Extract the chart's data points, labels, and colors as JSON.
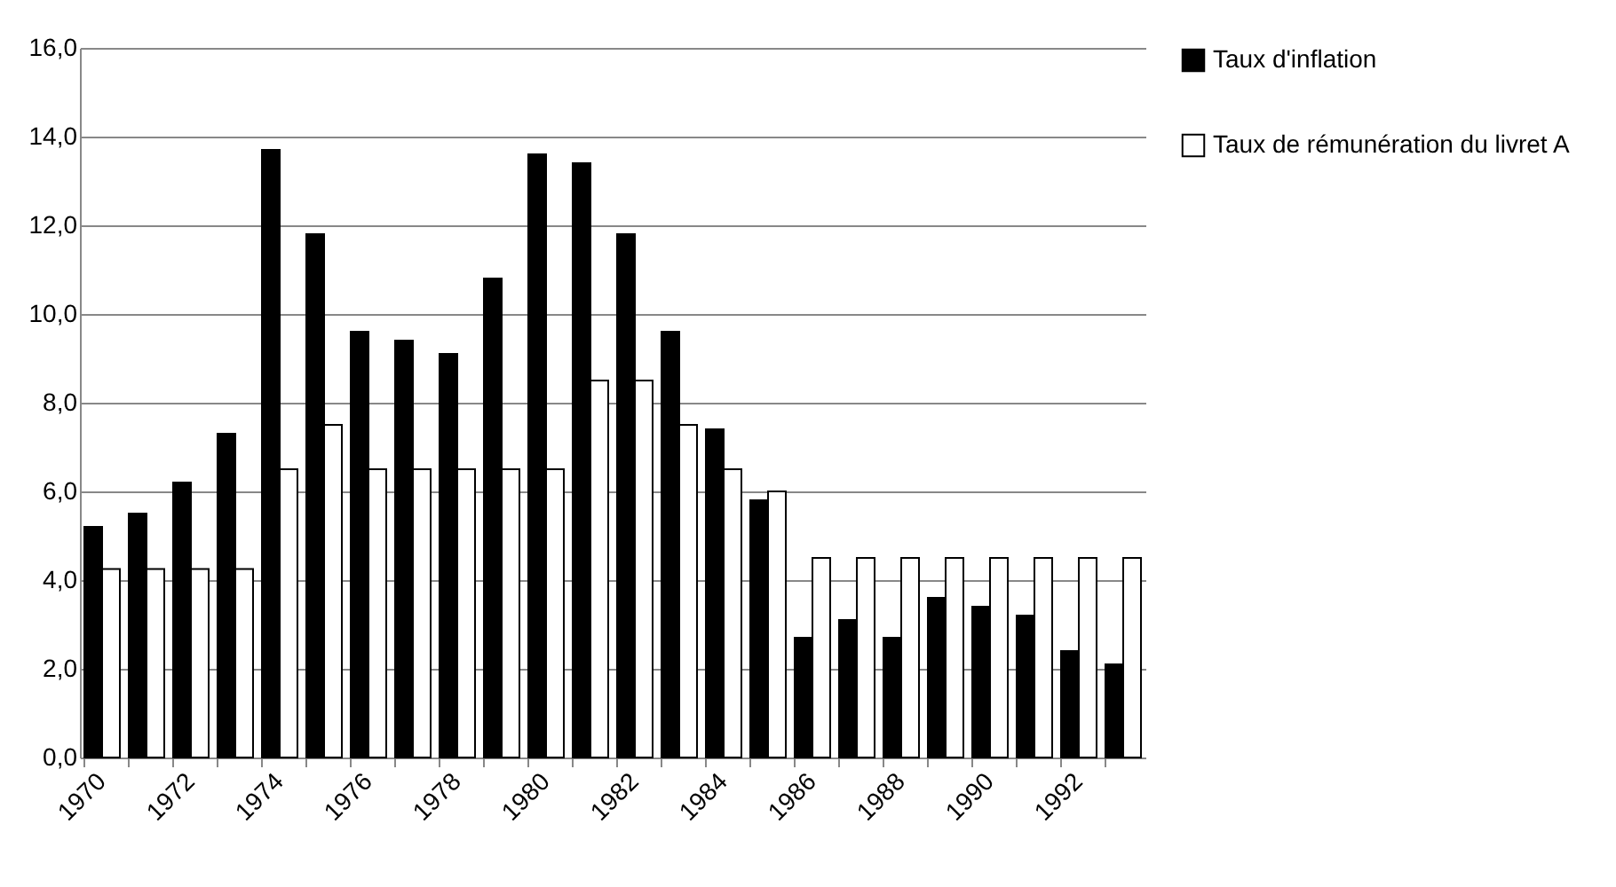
{
  "chart_data": {
    "type": "bar",
    "categories": [
      "1970",
      null,
      "1972",
      null,
      "1974",
      null,
      "1976",
      null,
      "1978",
      null,
      "1980",
      null,
      "1982",
      null,
      "1984",
      null,
      "1986",
      null,
      "1988",
      null,
      "1990",
      null,
      "1992",
      null
    ],
    "series": [
      {
        "name": "Taux d'inflation",
        "color": "#000000",
        "values": [
          5.2,
          5.5,
          6.2,
          7.3,
          13.7,
          11.8,
          9.6,
          9.4,
          9.1,
          10.8,
          13.6,
          13.4,
          11.8,
          9.6,
          7.4,
          5.8,
          2.7,
          3.1,
          2.7,
          3.6,
          3.4,
          3.2,
          2.4,
          2.1
        ]
      },
      {
        "name": "Taux de rémunération du livret A",
        "color": "#ffffff",
        "values": [
          4.25,
          4.25,
          4.25,
          4.25,
          6.5,
          7.5,
          6.5,
          6.5,
          6.5,
          6.5,
          6.5,
          8.5,
          8.5,
          7.5,
          6.5,
          6.0,
          4.5,
          4.5,
          4.5,
          4.5,
          4.5,
          4.5,
          4.5,
          4.5
        ]
      }
    ],
    "ylim": [
      0,
      16
    ],
    "yticks": [
      {
        "value": 0,
        "label": "0,0"
      },
      {
        "value": 2,
        "label": "2,0"
      },
      {
        "value": 4,
        "label": "4,0"
      },
      {
        "value": 6,
        "label": "6,0"
      },
      {
        "value": 8,
        "label": "8,0"
      },
      {
        "value": 10,
        "label": "10,0"
      },
      {
        "value": 12,
        "label": "12,0"
      },
      {
        "value": 14,
        "label": "14,0"
      },
      {
        "value": 16,
        "label": "16,0"
      }
    ],
    "grid": "y",
    "legend": "right"
  }
}
